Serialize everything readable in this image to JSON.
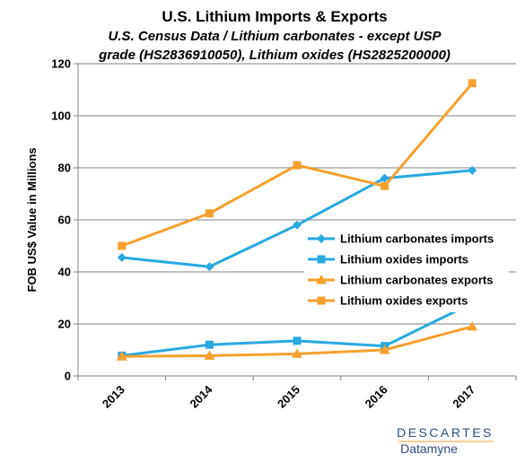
{
  "chart_data": {
    "type": "line",
    "title": "U.S. Lithium Imports & Exports",
    "subtitle_line1": "U.S. Census Data /  Lithium carbonates - except USP",
    "subtitle_line2": "grade (HS2836910050), Lithium oxides (HS2825200000)",
    "ylabel": "FOB US$ Value in Millions",
    "xlabel": "",
    "categories": [
      "2013",
      "2014",
      "2015",
      "2016",
      "2017"
    ],
    "ylim": [
      0,
      120
    ],
    "yticks": [
      0,
      20,
      40,
      60,
      80,
      100,
      120
    ],
    "grid": "horizontal",
    "legend_position": "right-middle",
    "series": [
      {
        "name": "Lithium carbonates imports",
        "color": "#29a8e0",
        "marker": "diamond",
        "values": [
          45.5,
          42.0,
          58.0,
          76.0,
          79.0
        ]
      },
      {
        "name": "Lithium oxides imports",
        "color": "#29a8e0",
        "marker": "square",
        "values": [
          7.8,
          12.0,
          13.5,
          11.5,
          28.0
        ]
      },
      {
        "name": "Lithium carbonates exports",
        "color": "#f5a02e",
        "marker": "triangle",
        "values": [
          7.5,
          7.8,
          8.5,
          10.0,
          19.0
        ]
      },
      {
        "name": "Lithium oxides exports",
        "color": "#f5a02e",
        "marker": "square",
        "values": [
          50.0,
          62.5,
          81.0,
          73.0,
          112.5
        ]
      }
    ]
  },
  "branding": {
    "company": "DESCARTES",
    "product": "Datamyne",
    "color": "#2e4d7b"
  }
}
